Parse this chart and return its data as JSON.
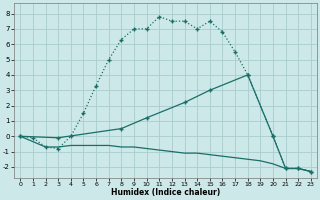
{
  "xlabel": "Humidex (Indice chaleur)",
  "bg_color": "#cde8e8",
  "grid_color": "#aacccc",
  "line_color": "#1a6e68",
  "xlim": [
    -0.5,
    23.5
  ],
  "ylim": [
    -2.7,
    8.7
  ],
  "xticks": [
    0,
    1,
    2,
    3,
    4,
    5,
    6,
    7,
    8,
    9,
    10,
    11,
    12,
    13,
    14,
    15,
    16,
    17,
    18,
    19,
    20,
    21,
    22,
    23
  ],
  "yticks": [
    -2,
    -1,
    0,
    1,
    2,
    3,
    4,
    5,
    6,
    7,
    8
  ],
  "curve1_x": [
    0,
    1,
    2,
    3,
    4,
    5,
    6,
    7,
    8,
    9,
    10,
    11,
    12,
    13,
    14,
    15,
    16,
    17,
    18,
    20,
    21,
    22,
    23
  ],
  "curve1_y": [
    0.0,
    -0.1,
    -0.7,
    -0.8,
    0.0,
    1.5,
    3.3,
    5.0,
    6.3,
    7.0,
    7.0,
    7.8,
    7.5,
    7.5,
    7.0,
    7.5,
    6.8,
    5.5,
    4.0,
    0.0,
    -2.1,
    -2.1,
    -2.3
  ],
  "curve2_x": [
    0,
    3,
    8,
    10,
    13,
    15,
    18,
    20,
    21,
    22,
    23
  ],
  "curve2_y": [
    0.0,
    -0.1,
    0.5,
    1.2,
    2.2,
    3.0,
    4.0,
    0.0,
    -2.1,
    -2.1,
    -2.3
  ],
  "curve3_x": [
    0,
    2,
    3,
    4,
    5,
    6,
    7,
    8,
    9,
    10,
    11,
    12,
    13,
    14,
    15,
    16,
    17,
    18,
    19,
    20,
    21,
    22,
    23
  ],
  "curve3_y": [
    0.0,
    -0.7,
    -0.7,
    -0.6,
    -0.6,
    -0.6,
    -0.6,
    -0.7,
    -0.7,
    -0.8,
    -0.9,
    -1.0,
    -1.1,
    -1.1,
    -1.2,
    -1.3,
    -1.4,
    -1.5,
    -1.6,
    -1.8,
    -2.1,
    -2.1,
    -2.3
  ]
}
